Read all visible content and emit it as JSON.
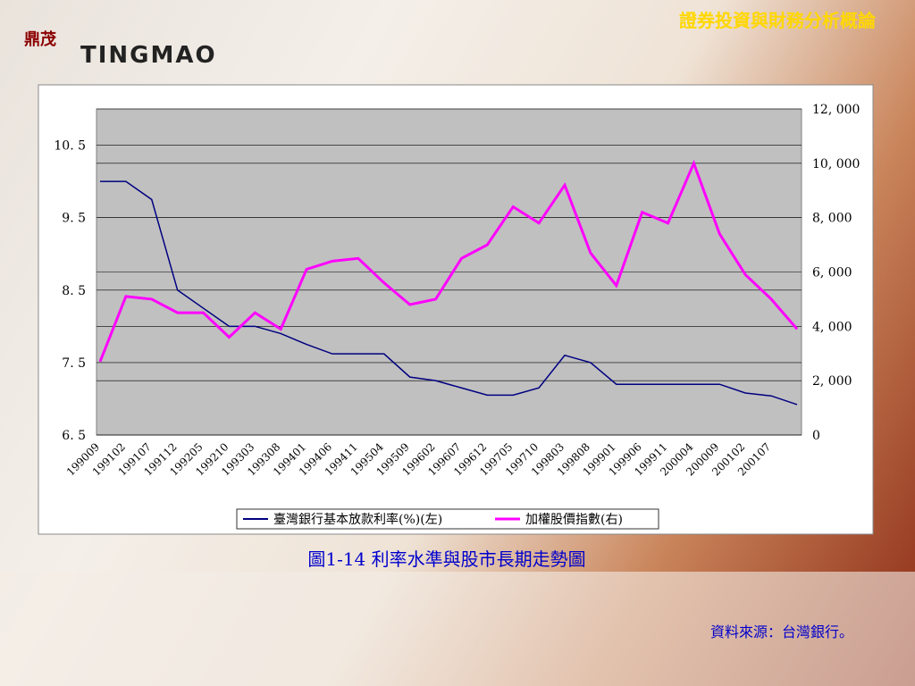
{
  "header": {
    "logo_mark": "鼎茂",
    "logo_text": "TINGMAO",
    "title": "證券投資與財務分析概論"
  },
  "chart_data": {
    "type": "line",
    "categories": [
      "199009",
      "199102",
      "199107",
      "199112",
      "199205",
      "199210",
      "199303",
      "199308",
      "199401",
      "199406",
      "199411",
      "199504",
      "199509",
      "199602",
      "199607",
      "199612",
      "199705",
      "199710",
      "199803",
      "199808",
      "199901",
      "199906",
      "199911",
      "200004",
      "200009",
      "200102",
      "200107",
      null
    ],
    "series": [
      {
        "name": "臺灣銀行基本放款利率(%)(左)",
        "color": "#000080",
        "values": [
          10.0,
          10.0,
          9.75,
          8.5,
          8.25,
          8.0,
          8.0,
          7.9,
          7.75,
          7.62,
          7.62,
          7.62,
          7.3,
          7.25,
          7.15,
          7.05,
          7.05,
          7.15,
          7.6,
          7.5,
          7.2,
          7.2,
          7.2,
          7.2,
          7.2,
          7.08,
          7.04,
          6.92
        ]
      },
      {
        "name": "加權股價指數(右)",
        "color": "#ff00ff",
        "axis": "y2",
        "values": [
          2700,
          5100,
          5000,
          4500,
          4500,
          3600,
          4500,
          3900,
          6100,
          6400,
          6500,
          5600,
          4800,
          5000,
          6500,
          7000,
          8400,
          7800,
          9200,
          6700,
          5500,
          8200,
          7800,
          10000,
          7400,
          5900,
          5000,
          3900
        ]
      }
    ],
    "ylim": [
      6.5,
      11
    ],
    "yticks": [
      {
        "value": 6.5,
        "label": "6. 5"
      },
      {
        "value": 7.5,
        "label": "7. 5"
      },
      {
        "value": 8.5,
        "label": "8. 5"
      },
      {
        "value": 9.5,
        "label": "9. 5"
      },
      {
        "value": 10.5,
        "label": "10. 5"
      }
    ],
    "y2lim": [
      0,
      12000
    ],
    "y2ticks": [
      0,
      {
        "value": 2000,
        "label": "2, 000"
      },
      {
        "value": 4000,
        "label": "4, 000"
      },
      {
        "value": 6000,
        "label": "6, 000"
      },
      {
        "value": 8000,
        "label": "8, 000"
      },
      {
        "value": 10000,
        "label": "10, 000"
      },
      {
        "value": 12000,
        "label": "12, 000"
      }
    ],
    "grid": true
  },
  "caption": "圖1-14 利率水準與股市長期走勢圖",
  "source": "資料來源：台灣銀行。"
}
